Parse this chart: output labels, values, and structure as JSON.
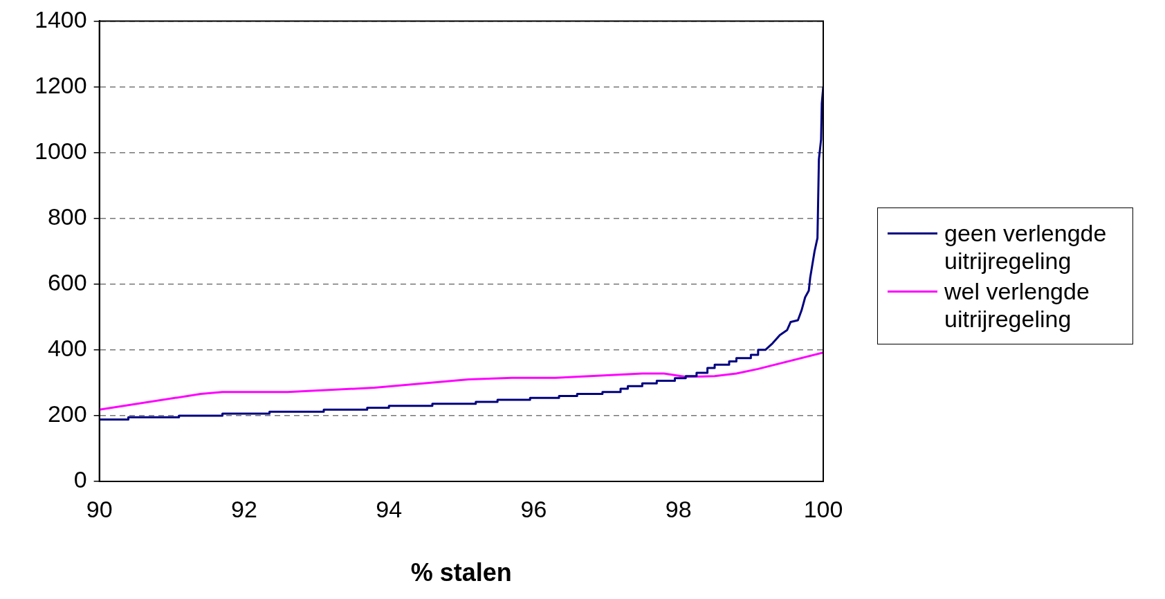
{
  "chart_data": {
    "type": "line",
    "xlabel": "% stalen",
    "xlim": [
      90,
      100
    ],
    "xticks": [
      90,
      92,
      94,
      96,
      98,
      100
    ],
    "ylim": [
      0,
      1400
    ],
    "yticks": [
      0,
      200,
      400,
      600,
      800,
      1000,
      1200,
      1400
    ],
    "grid": "y",
    "legend": "right",
    "marker": "none",
    "line_style": "solid",
    "series": [
      {
        "name": "geen verlengde uitrijregeling",
        "color": "#000080",
        "x": [
          90,
          90.4,
          90.4,
          91.1,
          91.1,
          91.7,
          91.7,
          92.35,
          92.35,
          93.1,
          93.1,
          93.7,
          93.7,
          94.0,
          94.0,
          94.6,
          94.6,
          95.2,
          95.2,
          95.5,
          95.5,
          95.95,
          95.95,
          96.35,
          96.35,
          96.6,
          96.6,
          96.95,
          96.95,
          97.2,
          97.2,
          97.3,
          97.3,
          97.5,
          97.5,
          97.7,
          97.7,
          97.95,
          97.95,
          98.1,
          98.1,
          98.25,
          98.25,
          98.4,
          98.4,
          98.5,
          98.5,
          98.7,
          98.7,
          98.8,
          98.8,
          99.0,
          99.0,
          99.1,
          99.1,
          99.2,
          99.3,
          99.4,
          99.5,
          99.55,
          99.65,
          99.7,
          99.75,
          99.8,
          99.82,
          99.85,
          99.88,
          99.92,
          99.94,
          99.97,
          99.98,
          100
        ],
        "values": [
          188,
          188,
          195,
          195,
          200,
          200,
          206,
          206,
          212,
          212,
          218,
          218,
          224,
          224,
          230,
          230,
          236,
          236,
          242,
          242,
          248,
          248,
          254,
          254,
          260,
          260,
          266,
          266,
          272,
          272,
          282,
          282,
          290,
          290,
          298,
          298,
          306,
          306,
          314,
          314,
          320,
          320,
          330,
          330,
          345,
          345,
          355,
          355,
          365,
          365,
          375,
          375,
          385,
          385,
          400,
          400,
          420,
          445,
          460,
          485,
          490,
          520,
          560,
          580,
          620,
          660,
          700,
          740,
          980,
          1040,
          1150,
          1200
        ]
      },
      {
        "name": "wel verlengde uitrijregeling",
        "color": "#ff00ff",
        "x": [
          90,
          91.4,
          91.7,
          92.6,
          93.8,
          95.1,
          95.7,
          96.3,
          97.5,
          97.8,
          98.1,
          98.5,
          98.8,
          99.1,
          100
        ],
        "values": [
          218,
          266,
          272,
          272,
          285,
          310,
          315,
          315,
          328,
          328,
          318,
          320,
          328,
          342,
          392
        ]
      }
    ]
  }
}
